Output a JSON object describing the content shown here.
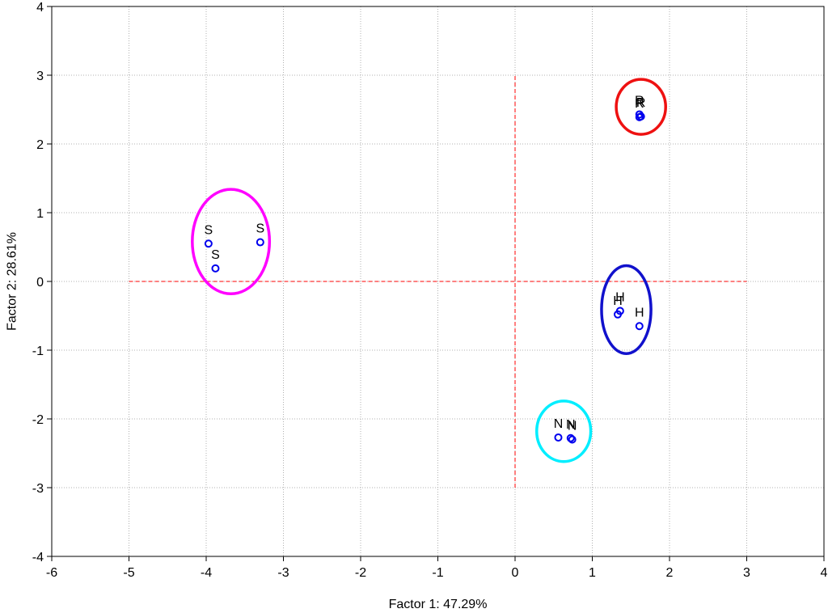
{
  "chart_data": {
    "type": "scatter",
    "xlabel": "Factor 1: 47.29%",
    "ylabel": "Factor 2: 28.61%",
    "xlim": [
      -6,
      4
    ],
    "ylim": [
      -4,
      4
    ],
    "x_ticks": [
      "-6",
      "-5",
      "-4",
      "-3",
      "-2",
      "-1",
      "0",
      "1",
      "2",
      "3",
      "4"
    ],
    "y_ticks": [
      "-4",
      "-3",
      "-2",
      "-1",
      "0",
      "1",
      "2",
      "3",
      "4"
    ],
    "grid": true,
    "points": [
      {
        "x": -3.97,
        "y": 0.55,
        "label": "S"
      },
      {
        "x": -3.88,
        "y": 0.19,
        "label": "S"
      },
      {
        "x": -3.3,
        "y": 0.57,
        "label": "S"
      },
      {
        "x": 1.61,
        "y": 2.43,
        "label": "R"
      },
      {
        "x": 1.63,
        "y": 2.4,
        "label": "R"
      },
      {
        "x": 1.61,
        "y": 2.39,
        "label": "R"
      },
      {
        "x": 1.36,
        "y": -0.43,
        "label": "H"
      },
      {
        "x": 1.33,
        "y": -0.48,
        "label": "H"
      },
      {
        "x": 1.61,
        "y": -0.65,
        "label": "H"
      },
      {
        "x": 0.56,
        "y": -2.27,
        "label": "N"
      },
      {
        "x": 0.72,
        "y": -2.28,
        "label": "N"
      },
      {
        "x": 0.74,
        "y": -2.3,
        "label": "N"
      }
    ],
    "group_ellipses": [
      {
        "group": "S",
        "cx": -3.68,
        "cy": 0.58,
        "rx": 0.5,
        "ry": 0.76,
        "color": "#ff00ff"
      },
      {
        "group": "R",
        "cx": 1.63,
        "cy": 2.54,
        "rx": 0.32,
        "ry": 0.4,
        "color": "#ee1111"
      },
      {
        "group": "H",
        "cx": 1.44,
        "cy": -0.41,
        "rx": 0.32,
        "ry": 0.64,
        "color": "#1111cc"
      },
      {
        "group": "N",
        "cx": 0.63,
        "cy": -2.18,
        "rx": 0.35,
        "ry": 0.44,
        "color": "#00eeff"
      }
    ],
    "reference_lines": {
      "horizontal": {
        "y": 0,
        "x_from": -5,
        "x_to": 3
      },
      "vertical": {
        "x": 0,
        "y_from": -3,
        "y_to": 3
      },
      "color": "#ff0000"
    },
    "point_color": "#0000ee"
  }
}
